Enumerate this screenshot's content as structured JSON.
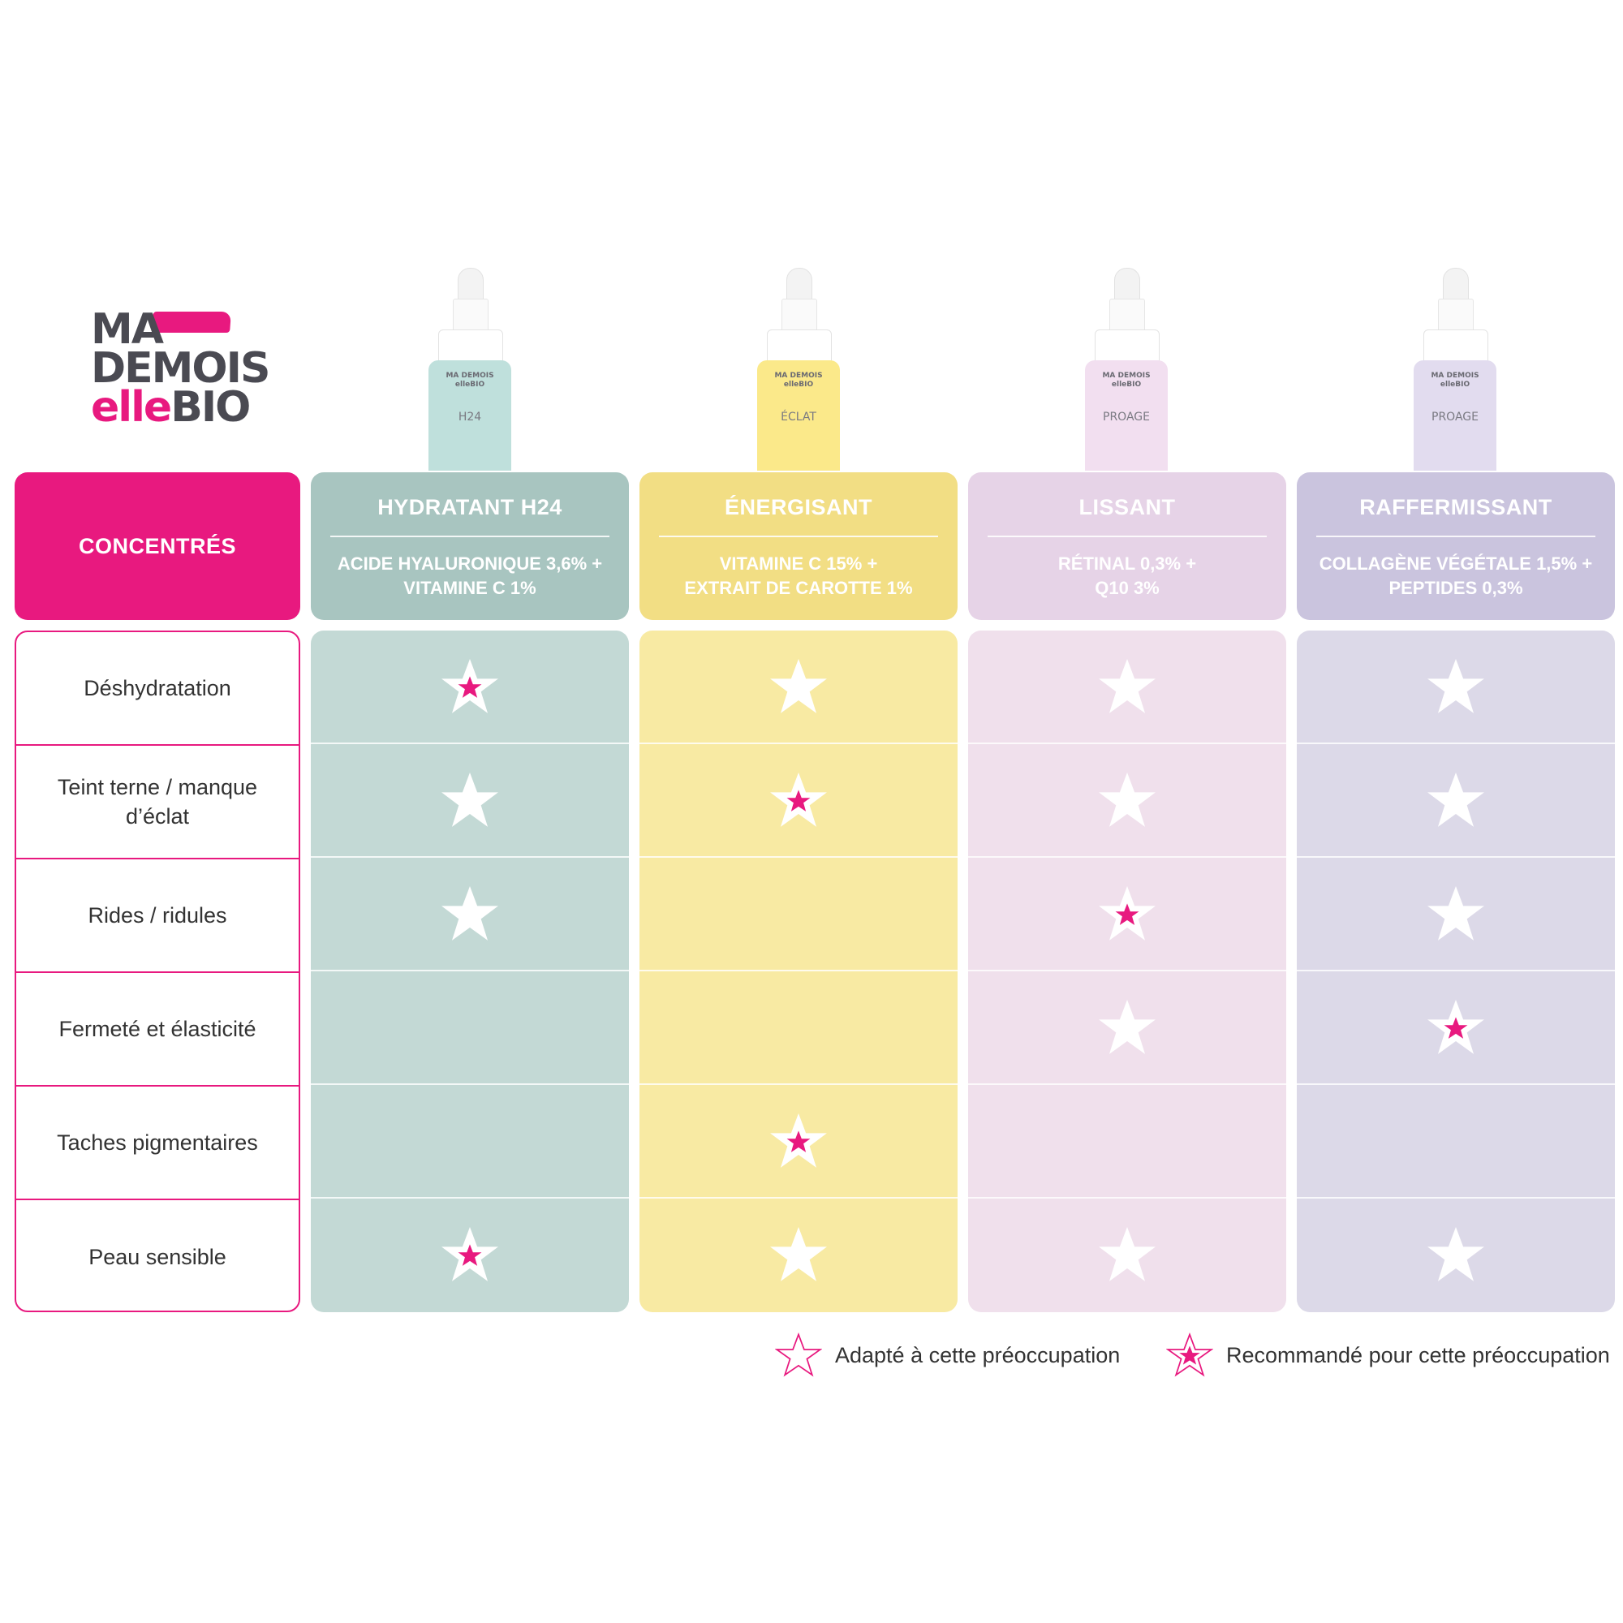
{
  "brand": {
    "line1": "MA",
    "line2": "DEMOIS",
    "line3_accent": "elle",
    "line3_rest": "BIO"
  },
  "colors": {
    "accent": "#e8197f"
  },
  "header": {
    "label": "CONCENTRÉS"
  },
  "rows": [
    "Déshydratation",
    "Teint terne / manque d’éclat",
    "Rides / ridules",
    "Fermeté et élasticité",
    "Taches pigmentaires",
    "Peau sensible"
  ],
  "products": [
    {
      "name": "HYDRATANT H24",
      "line1": "ACIDE HYALURONIQUE 3,6% +",
      "line2": "VITAMINE C 1%",
      "header_color": "#a8c5c0",
      "body_color": "#c3d9d5",
      "bottle_color": "#bfe0dc",
      "bottle_label": "MA DEMOIS elleBIO",
      "bottle_name": "H24",
      "ratings": [
        "recommended",
        "adapted",
        "adapted",
        "none",
        "none",
        "recommended"
      ]
    },
    {
      "name": "ÉNERGISANT",
      "line1": "VITAMINE C 15% +",
      "line2": "EXTRAIT DE CAROTTE 1%",
      "header_color": "#f2de84",
      "body_color": "#f8eaa3",
      "bottle_color": "#fbe98a",
      "bottle_label": "MA DEMOIS elleBIO",
      "bottle_name": "ÉCLAT",
      "ratings": [
        "adapted",
        "recommended",
        "none",
        "none",
        "recommended",
        "adapted"
      ]
    },
    {
      "name": "LISSANT",
      "line1": "RÉTINAL 0,3% +",
      "line2": "Q10 3%",
      "header_color": "#e6d3e7",
      "body_color": "#f0e0ec",
      "bottle_color": "#f2dff0",
      "bottle_label": "MA DEMOIS elleBIO",
      "bottle_name": "PROAGE",
      "ratings": [
        "adapted",
        "adapted",
        "recommended",
        "adapted",
        "none",
        "adapted"
      ]
    },
    {
      "name": "RAFFERMISSANT",
      "line1": "COLLAGÈNE VÉGÉTALE 1,5% +",
      "line2": "PEPTIDES 0,3%",
      "header_color": "#cac4de",
      "body_color": "#dcd9e8",
      "bottle_color": "#e2dcef",
      "bottle_label": "MA DEMOIS elleBIO",
      "bottle_name": "PROAGE",
      "ratings": [
        "adapted",
        "adapted",
        "adapted",
        "recommended",
        "none",
        "adapted"
      ]
    }
  ],
  "legend": {
    "adapted": "Adapté à cette préoccupation",
    "recommended": "Recommandé pour cette préoccupation"
  }
}
